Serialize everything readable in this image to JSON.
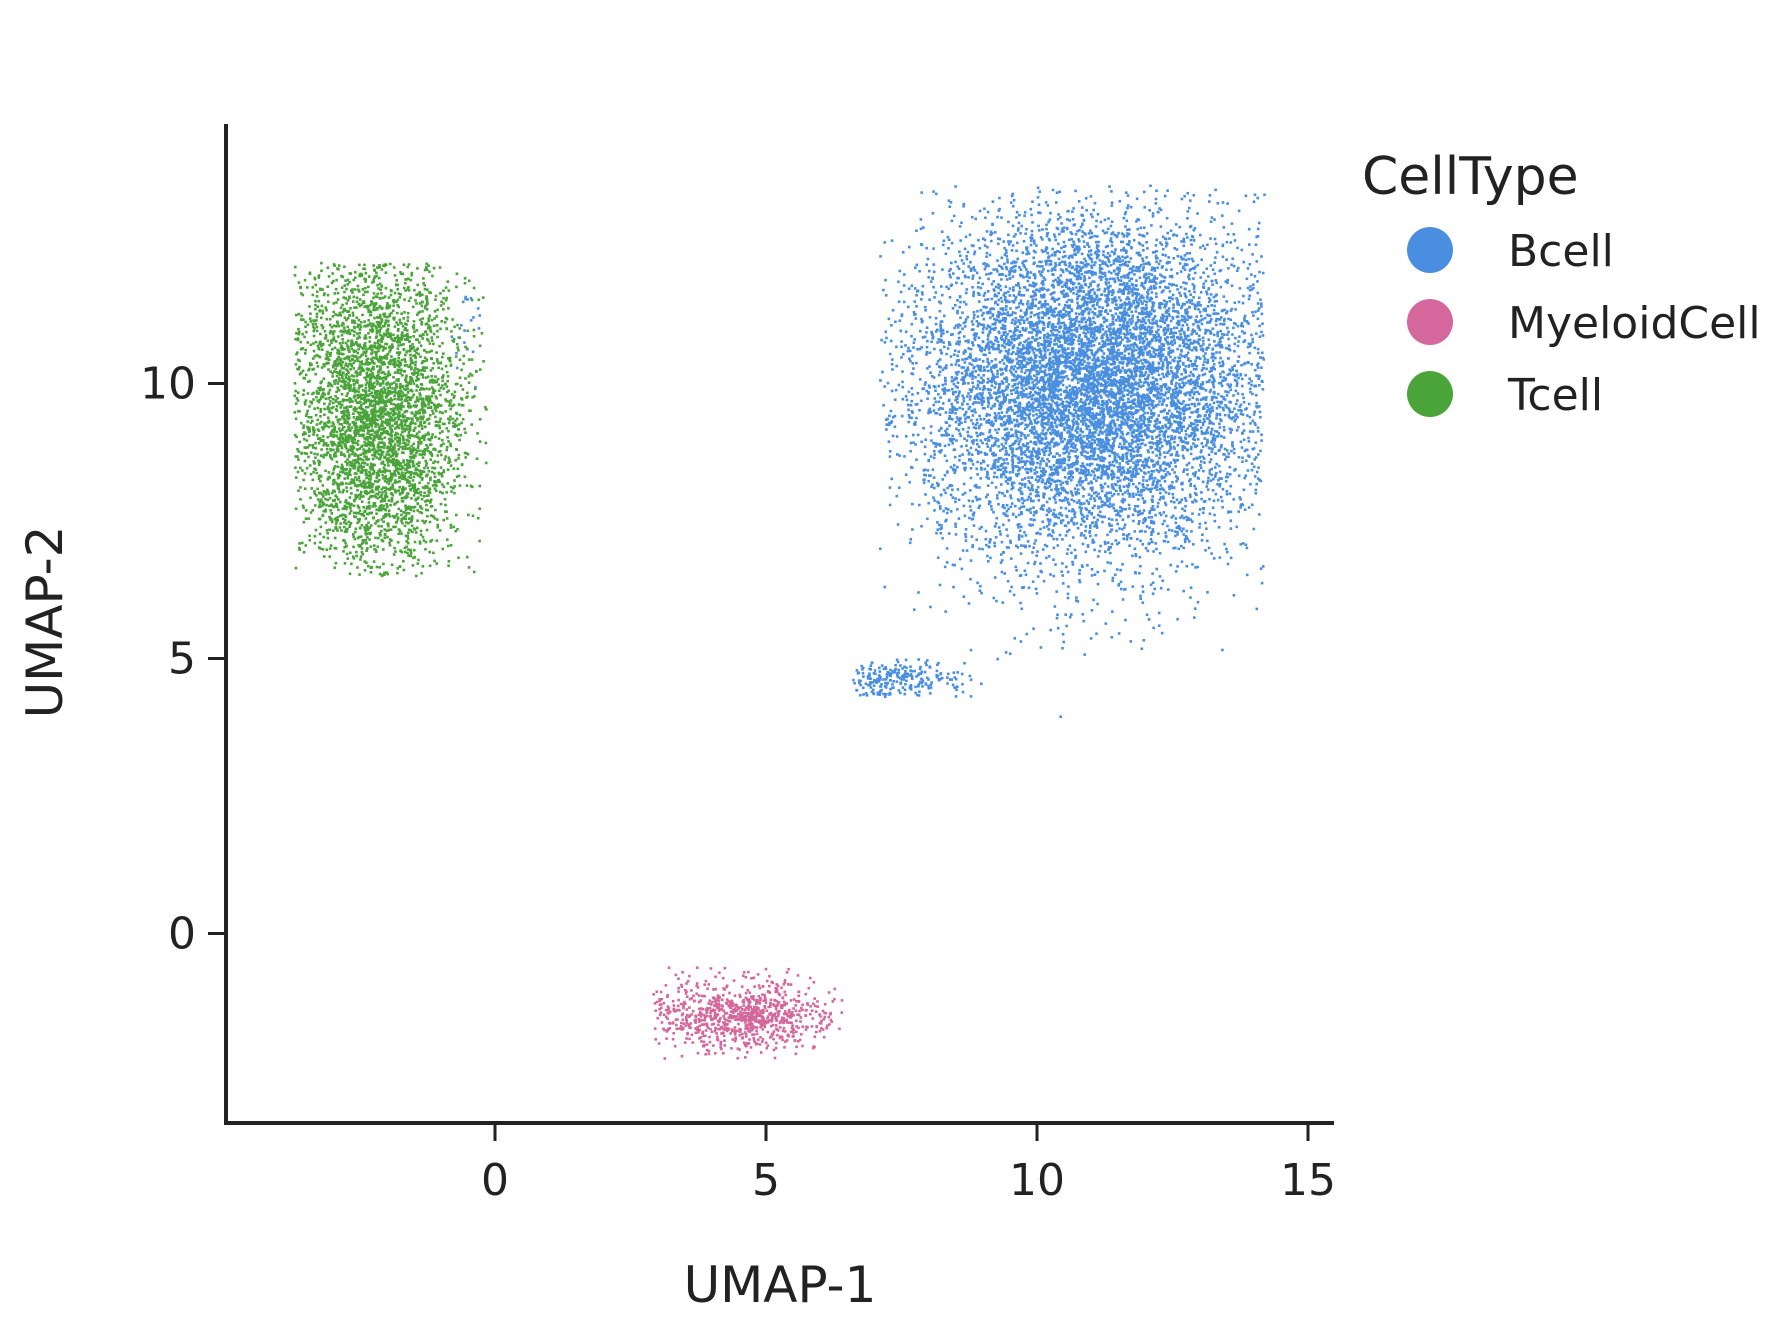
{
  "chart_data": {
    "type": "scatter",
    "title": "",
    "xlabel": "UMAP-1",
    "ylabel": "UMAP-2",
    "xlim": [
      -5,
      15.5
    ],
    "ylim": [
      -3.4,
      14.7
    ],
    "xticks": [
      0,
      5,
      10,
      15
    ],
    "yticks": [
      0,
      5,
      10
    ],
    "grid": false,
    "legend": {
      "title": "CellType",
      "placement": "top-right outside plot"
    },
    "series": [
      {
        "name": "Bcell",
        "color": "#4a8fdf",
        "clusters": [
          {
            "center_x": 11.0,
            "center_y": 10.0,
            "spread_x": 1.6,
            "spread_y": 1.5,
            "range_x": [
              7.1,
              14.2
            ],
            "range_y": [
              3.6,
              13.6
            ],
            "approx_points": 9000
          },
          {
            "center_x": 7.5,
            "center_y": 4.6,
            "spread_x": 0.6,
            "spread_y": 0.2,
            "range_x": [
              6.6,
              9.0
            ],
            "range_y": [
              4.3,
              5.0
            ],
            "approx_points": 250
          },
          {
            "center_x": -0.6,
            "center_y": 11.2,
            "spread_x": 0.25,
            "spread_y": 0.6,
            "range_x": [
              -0.8,
              -0.1
            ],
            "range_y": [
              9.8,
              12.0
            ],
            "approx_points": 25
          }
        ]
      },
      {
        "name": "MyeloidCell",
        "color": "#d4679b",
        "clusters": [
          {
            "center_x": 4.6,
            "center_y": -1.5,
            "spread_x": 0.9,
            "spread_y": 0.3,
            "range_x": [
              2.9,
              6.4
            ],
            "range_y": [
              -2.3,
              -0.4
            ],
            "approx_points": 900
          }
        ]
      },
      {
        "name": "Tcell",
        "color": "#4aa43a",
        "clusters": [
          {
            "center_x": -2.2,
            "center_y": 9.4,
            "spread_x": 0.8,
            "spread_y": 1.5,
            "range_x": [
              -3.7,
              -0.1
            ],
            "range_y": [
              6.5,
              12.2
            ],
            "approx_points": 4000
          }
        ]
      }
    ]
  }
}
